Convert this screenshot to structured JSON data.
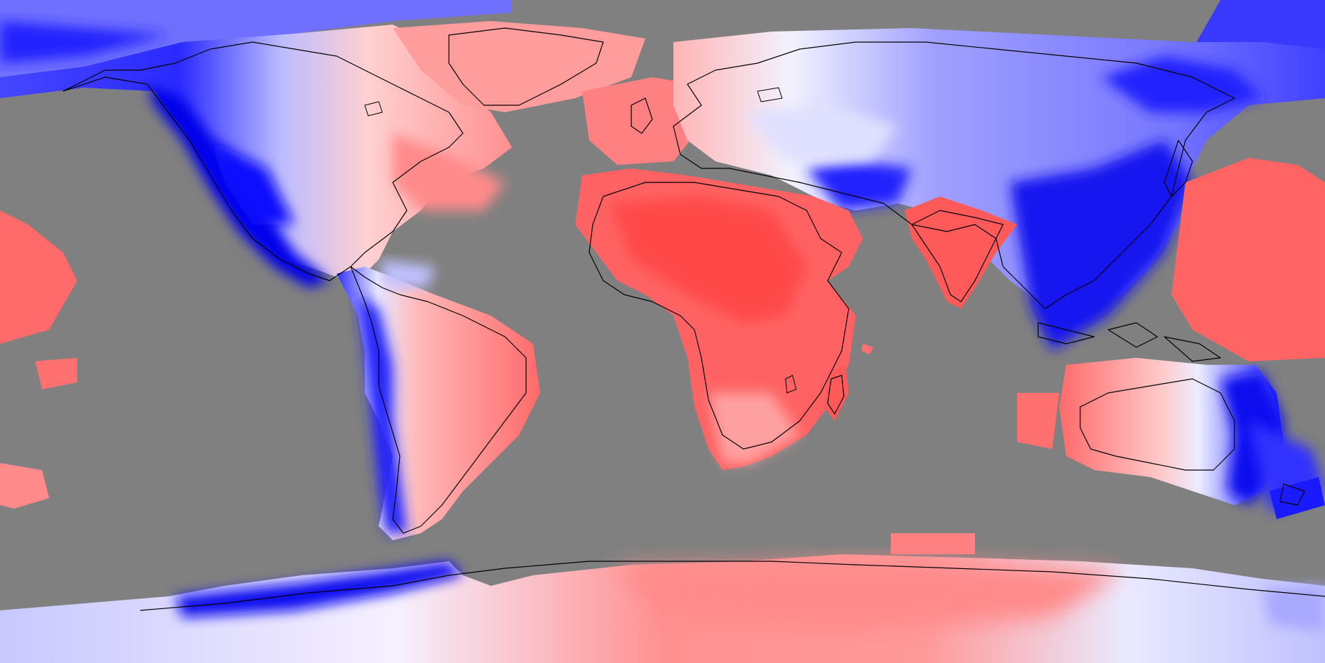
{
  "map": {
    "projection": "equirectangular",
    "colormap": [
      "blue",
      "white",
      "red"
    ],
    "no_data_color": "#808080",
    "colors": {
      "blue_dark": "#0000f0",
      "blue_mid": "#5a5aff",
      "blue_light": "#b4b4ff",
      "white": "#f4f4ff",
      "red_light": "#ffb0b0",
      "red_mid": "#ff8080",
      "red_strong": "#ff5050",
      "no_data": "#808080",
      "coastline": "#000000"
    }
  }
}
